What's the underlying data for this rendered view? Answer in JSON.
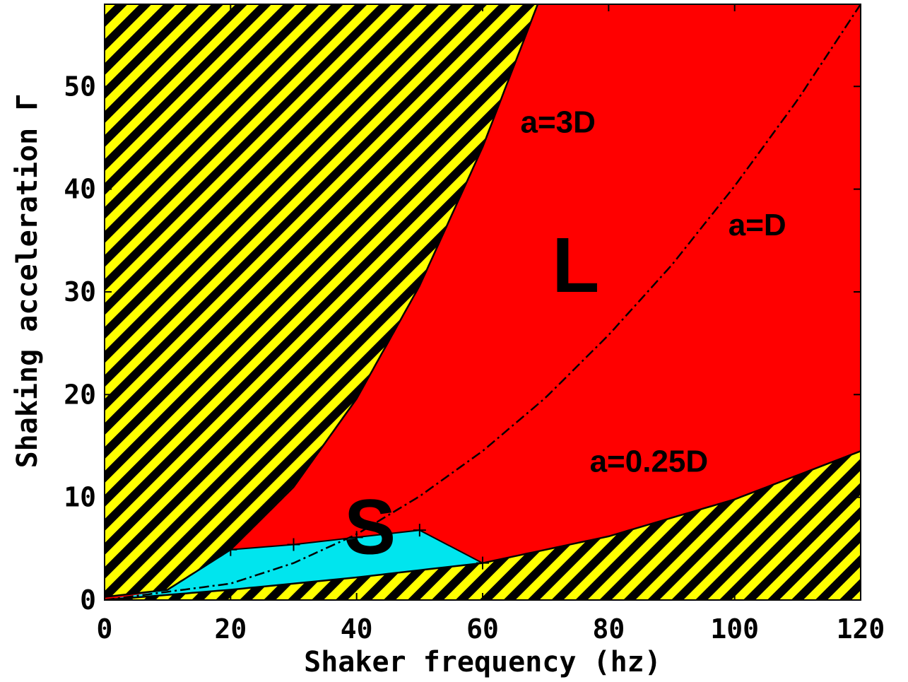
{
  "chart_data": {
    "type": "area",
    "title": "",
    "xlabel": "Shaker frequency (hz)",
    "ylabel": "Shaking acceleration Γ",
    "xlim": [
      0,
      120
    ],
    "ylim": [
      0,
      58
    ],
    "xticks": [
      0,
      20,
      40,
      60,
      80,
      100,
      120
    ],
    "yticks": [
      0,
      10,
      20,
      30,
      40,
      50
    ],
    "grid": false,
    "legend": "none",
    "regions": [
      {
        "label": "L",
        "color": "#ff0000",
        "label_x": 71,
        "label_y": 30
      },
      {
        "label": "S",
        "color": "#00e5ee",
        "label_x": 38,
        "label_y": 4.5
      },
      {
        "label": "",
        "color": "#ffff00",
        "pattern": "black-yellow-hatch"
      }
    ],
    "curves": [
      {
        "name": "a=3D",
        "style": "solid",
        "label_x": 66,
        "label_y": 45.5,
        "x": [
          0,
          10,
          20,
          30,
          40,
          50,
          60,
          70
        ],
        "y": [
          0.3,
          1.0,
          4.9,
          11,
          19.6,
          30.6,
          44.1,
          60
        ]
      },
      {
        "name": "a=D",
        "style": "dash-dot",
        "label_x": 99,
        "label_y": 35.5,
        "x": [
          0,
          20,
          30,
          40,
          50,
          60,
          70,
          80,
          90,
          100,
          110,
          120
        ],
        "y": [
          0,
          1.6,
          3.6,
          6.4,
          10.1,
          14.5,
          19.7,
          25.8,
          32.6,
          40.3,
          48.7,
          58
        ]
      },
      {
        "name": "a=0.25D",
        "style": "solid",
        "label_x": 77,
        "label_y": 12.5,
        "x": [
          0,
          20,
          40,
          60,
          80,
          100,
          120
        ],
        "y": [
          0,
          1.0,
          2.2,
          3.6,
          6.2,
          9.8,
          14.5
        ]
      }
    ],
    "points": [
      {
        "x": 20,
        "y": 4.9
      },
      {
        "x": 30,
        "y": 5.4
      },
      {
        "x": 40,
        "y": 6.1
      },
      {
        "x": 50,
        "y": 6.8
      },
      {
        "x": 60,
        "y": 3.6
      }
    ]
  }
}
